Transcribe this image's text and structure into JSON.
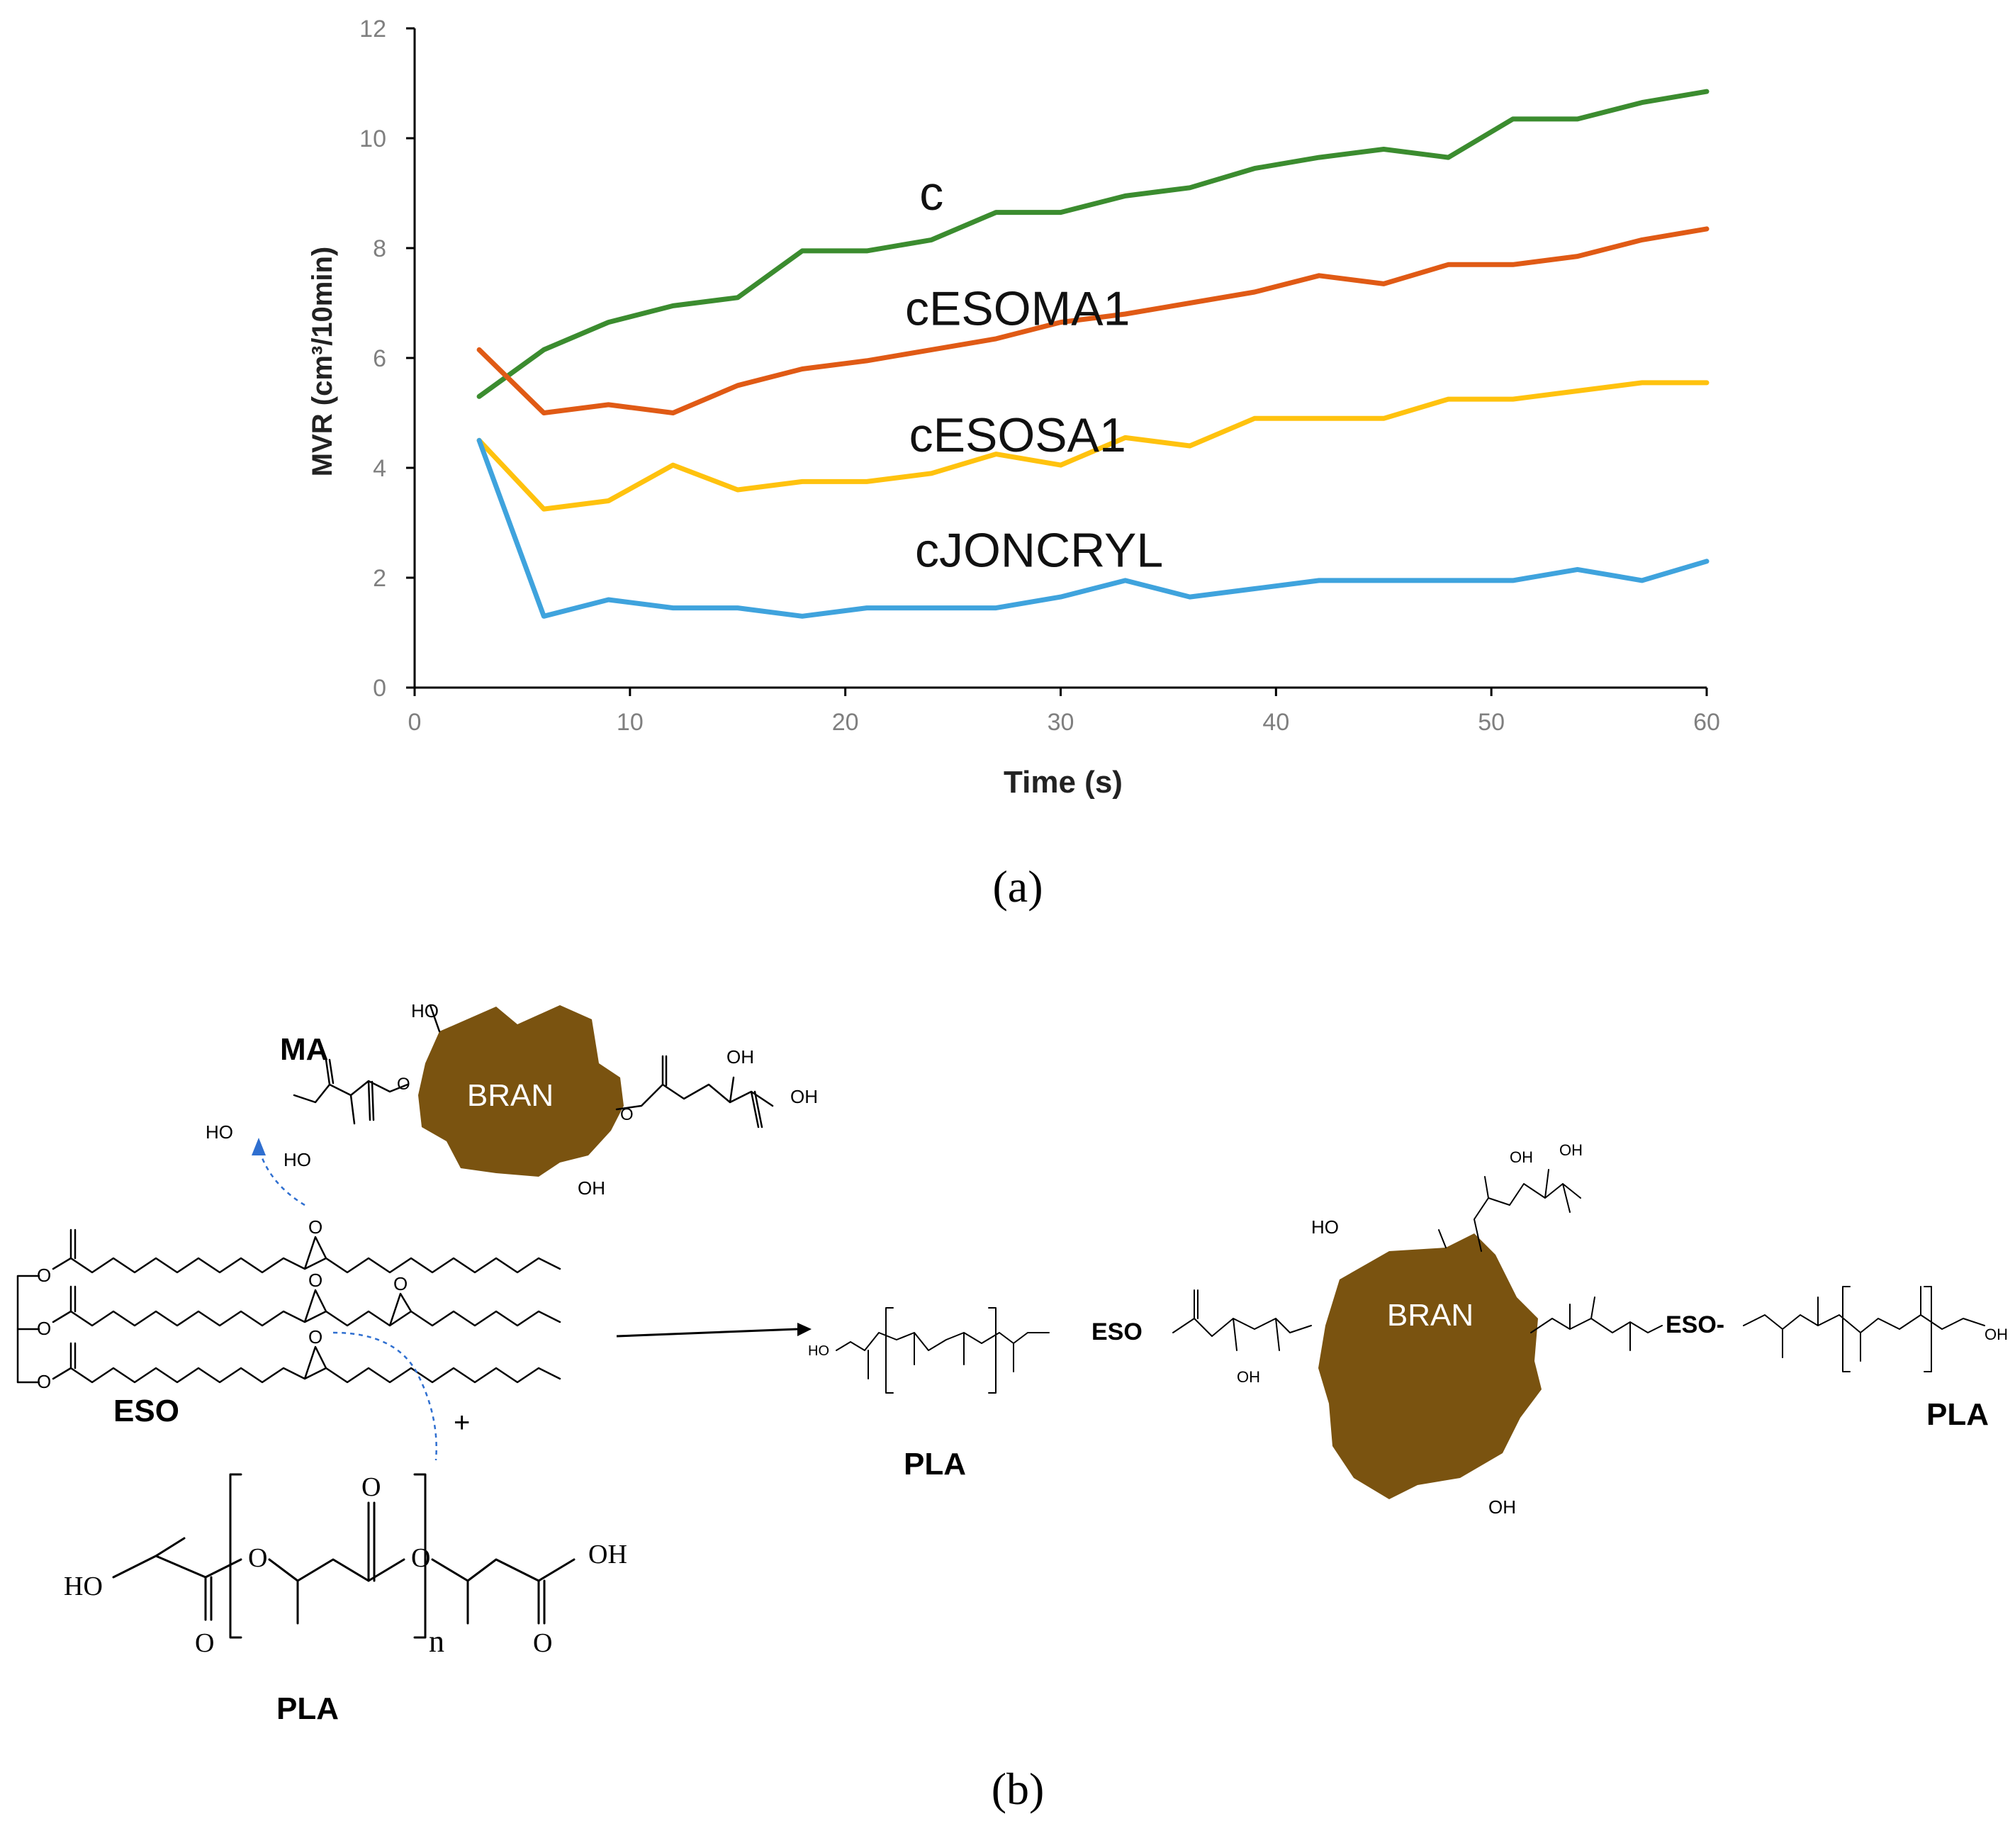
{
  "chart_data": {
    "type": "line",
    "title": "",
    "xlabel": "Time (s)",
    "ylabel": "MVR (cm³/10min)",
    "xlim": [
      0,
      60
    ],
    "ylim": [
      0,
      12
    ],
    "xticks": [
      0,
      10,
      20,
      30,
      40,
      50,
      60
    ],
    "yticks": [
      0,
      2,
      4,
      6,
      8,
      10,
      12
    ],
    "grid": false,
    "legend": "inline labels",
    "x": [
      3,
      6,
      9,
      12,
      15,
      18,
      21,
      24,
      27,
      30,
      33,
      36,
      39,
      42,
      45,
      48,
      51,
      54,
      57,
      60
    ],
    "series": [
      {
        "name": "c",
        "color": "#3b8c2f",
        "values": [
          5.3,
          6.15,
          6.65,
          6.95,
          7.1,
          7.95,
          7.95,
          8.15,
          8.65,
          8.65,
          8.95,
          9.1,
          9.45,
          9.65,
          9.8,
          9.65,
          10.35,
          10.35,
          10.65,
          10.85
        ]
      },
      {
        "name": "cESOMA1",
        "color": "#e05a15",
        "values": [
          6.15,
          5.0,
          5.15,
          5.0,
          5.5,
          5.8,
          5.95,
          6.15,
          6.35,
          6.65,
          6.8,
          7.0,
          7.2,
          7.5,
          7.35,
          7.7,
          7.7,
          7.85,
          8.15,
          8.35
        ]
      },
      {
        "name": "cESOSA1",
        "color": "#ffc20e",
        "values": [
          4.5,
          3.25,
          3.4,
          4.05,
          3.6,
          3.75,
          3.75,
          3.9,
          4.25,
          4.05,
          4.55,
          4.4,
          4.9,
          4.9,
          4.9,
          5.25,
          5.25,
          5.4,
          5.55,
          5.55
        ]
      },
      {
        "name": "cJONCRYL",
        "color": "#3fa3dd",
        "values": [
          4.5,
          1.3,
          1.6,
          1.45,
          1.45,
          1.3,
          1.45,
          1.45,
          1.45,
          1.65,
          1.95,
          1.65,
          1.8,
          1.95,
          1.95,
          1.95,
          1.95,
          2.15,
          1.95,
          2.3
        ]
      }
    ]
  },
  "captions": {
    "a": "(a)",
    "b": "(b)"
  },
  "scheme": {
    "ma_label": "MA",
    "eso_label": "ESO",
    "pla_label": "PLA",
    "bran_label": "BRAN",
    "plus": "+",
    "repeat_n": "n",
    "ho": "HO",
    "oh": "OH",
    "o": "O",
    "eso_link": "ESO",
    "eso_link_right": "ESO-"
  }
}
